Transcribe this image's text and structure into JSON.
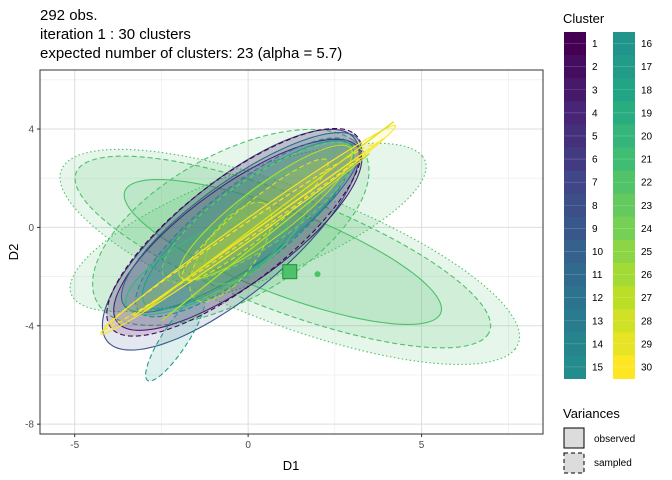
{
  "chart_data": {
    "type": "scatter",
    "subtype": "cluster-ellipses",
    "title_lines": [
      "292 obs.",
      "iteration 1 : 30 clusters",
      "expected number of clusters: 23 (alpha = 5.7)"
    ],
    "xlabel": "D1",
    "ylabel": "D2",
    "xlim": [
      -6,
      8.5
    ],
    "ylim": [
      -8.4,
      6.4
    ],
    "xticks": [
      -5,
      0,
      5
    ],
    "yticks": [
      -8,
      -4,
      0,
      4
    ],
    "grid": true,
    "legend_title": "Cluster",
    "legend_position": "right",
    "cluster_labels": [
      "1",
      "2",
      "3",
      "4",
      "5",
      "6",
      "7",
      "8",
      "9",
      "10",
      "11",
      "12",
      "13",
      "14",
      "15",
      "16",
      "17",
      "18",
      "19",
      "20",
      "21",
      "22",
      "23",
      "24",
      "25",
      "26",
      "27",
      "28",
      "29",
      "30"
    ],
    "cluster_colors": [
      "#440154",
      "#460B5E",
      "#481467",
      "#481D6F",
      "#472676",
      "#45307C",
      "#433880",
      "#404185",
      "#3D4A89",
      "#3A528B",
      "#375A8C",
      "#34618D",
      "#31688E",
      "#2E6F8E",
      "#2C768E",
      "#297D8E",
      "#26848E",
      "#248B8D",
      "#21918C",
      "#1F988B",
      "#1F9F88",
      "#21A685",
      "#28AE80",
      "#32B57A",
      "#3FBC73",
      "#4EC36B",
      "#60C963",
      "#72CF56",
      "#86D549",
      "#9AD93C"
    ],
    "variances_title": "Variances",
    "variances_items": [
      "observed",
      "sampled"
    ],
    "markers": [
      {
        "kind": "square",
        "x": 1.2,
        "y": -1.8,
        "color": "#4CC26A"
      },
      {
        "kind": "dot",
        "x": 2.0,
        "y": -1.9,
        "color": "#4CC26A"
      }
    ],
    "ellipses": [
      {
        "cx": 0.0,
        "cy": 0.0,
        "rx": 5.8,
        "ry": 2.1,
        "angle": 30,
        "color": "#4CC26A",
        "style": "dotted",
        "fill": true
      },
      {
        "cx": 1.2,
        "cy": -1.2,
        "rx": 7.5,
        "ry": 2.6,
        "angle": -30,
        "color": "#4CC26A",
        "style": "dotted",
        "fill": true
      },
      {
        "cx": 1.0,
        "cy": -1.0,
        "rx": 6.8,
        "ry": 2.2,
        "angle": -30,
        "color": "#4CC26A",
        "style": "dashed",
        "fill": true
      },
      {
        "cx": 1.0,
        "cy": -1.0,
        "rx": 5.2,
        "ry": 1.6,
        "angle": -30,
        "color": "#4CC26A",
        "style": "solid",
        "fill": true
      },
      {
        "cx": -0.5,
        "cy": 0.0,
        "rx": 5.0,
        "ry": 2.6,
        "angle": 45,
        "color": "#4CC26A",
        "style": "dashed",
        "fill": true
      },
      {
        "cx": -0.5,
        "cy": -0.5,
        "rx": 5.5,
        "ry": 1.9,
        "angle": 52,
        "color": "#3B528B",
        "style": "solid",
        "fill": true
      },
      {
        "cx": -0.3,
        "cy": -0.3,
        "rx": 5.0,
        "ry": 1.7,
        "angle": 48,
        "color": "#472676",
        "style": "solid",
        "fill": true
      },
      {
        "cx": -0.4,
        "cy": -0.2,
        "rx": 5.3,
        "ry": 1.8,
        "angle": 50,
        "color": "#440154",
        "style": "dashed",
        "fill": true
      },
      {
        "cx": -0.2,
        "cy": 0.2,
        "rx": 4.8,
        "ry": 1.5,
        "angle": 47,
        "color": "#31688E",
        "style": "solid",
        "fill": true
      },
      {
        "cx": -0.1,
        "cy": 0.0,
        "rx": 4.6,
        "ry": 1.4,
        "angle": 50,
        "color": "#26828E",
        "style": "dashed",
        "fill": true
      },
      {
        "cx": 0.0,
        "cy": 0.1,
        "rx": 4.4,
        "ry": 1.3,
        "angle": 49,
        "color": "#1F9E89",
        "style": "solid",
        "fill": true
      },
      {
        "cx": -2.1,
        "cy": -4.5,
        "rx": 1.9,
        "ry": 0.4,
        "angle": 66,
        "color": "#1F9E89",
        "style": "dashed",
        "fill": true
      },
      {
        "cx": -1.2,
        "cy": -1.5,
        "rx": 2.9,
        "ry": 1.1,
        "angle": 40,
        "color": "#35B779",
        "style": "solid",
        "fill": true
      },
      {
        "cx": 0.3,
        "cy": 0.6,
        "rx": 3.8,
        "ry": 1.2,
        "angle": 46,
        "color": "#6DCD59",
        "style": "dashed",
        "fill": true
      },
      {
        "cx": 0.3,
        "cy": 0.0,
        "rx": 2.6,
        "ry": 1.0,
        "angle": 60,
        "color": "#4CC26A",
        "style": "solid",
        "fill": false
      },
      {
        "cx": -0.5,
        "cy": -1.0,
        "rx": 2.2,
        "ry": 0.8,
        "angle": 65,
        "color": "#B4DE2C",
        "style": "dashed",
        "fill": true
      },
      {
        "cx": 0.5,
        "cy": 0.6,
        "rx": 3.6,
        "ry": 0.9,
        "angle": 48,
        "color": "#B4DE2C",
        "style": "solid",
        "fill": true
      },
      {
        "cx": 0.2,
        "cy": 0.3,
        "rx": 3.2,
        "ry": 0.6,
        "angle": 50,
        "color": "#DCE319",
        "style": "dashed",
        "fill": true
      },
      {
        "cx": 0.0,
        "cy": -0.1,
        "rx": 6.0,
        "ry": 0.35,
        "angle": 45,
        "color": "#FDE725",
        "style": "solid",
        "fill": true
      },
      {
        "cx": -0.3,
        "cy": -0.4,
        "rx": 5.4,
        "ry": 0.25,
        "angle": 44,
        "color": "#FDE725",
        "style": "dashed",
        "fill": false
      }
    ]
  }
}
